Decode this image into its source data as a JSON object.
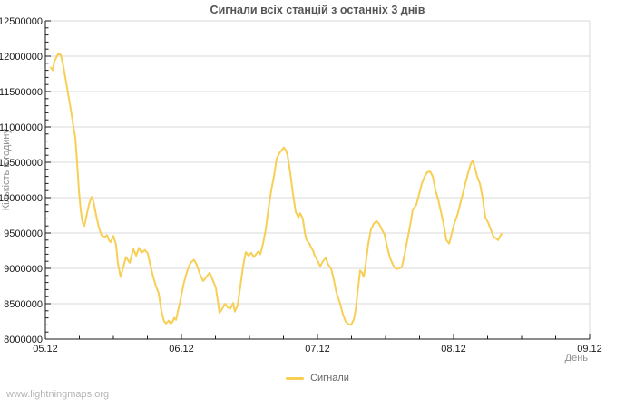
{
  "page": {
    "watermark": "www.lightningmaps.org"
  },
  "chart_data": {
    "type": "line",
    "title": "Сигнали всіх станцій з останніх 3 днів",
    "xlabel": "День",
    "ylabel": "Кількість в годину",
    "x_tick_labels": [
      "05.12",
      "06.12",
      "07.12",
      "08.12",
      "09.12"
    ],
    "y_ticks": [
      8000000,
      8500000,
      9000000,
      9500000,
      10000000,
      10500000,
      11000000,
      11500000,
      12000000,
      12500000
    ],
    "ylim": [
      8000000,
      12500000
    ],
    "xlim_days": [
      0,
      4
    ],
    "y_minor_step": 100000,
    "x_minor_step_days": 0.25,
    "grid": "horizontal-only",
    "legend_position": "bottom-center",
    "legend": [
      {
        "label": "Сигнали",
        "color": "#f7cf55"
      }
    ],
    "colors": {
      "line": "#f7cf55",
      "grid": "#d9d9d9",
      "axis": "#1a1a1a",
      "tick_label": "#1a1a1a",
      "title": "#555555",
      "muted": "#8f8f8f",
      "watermark": "#b5b5b5"
    },
    "series": [
      {
        "name": "Сигнали",
        "color": "#f7cf55",
        "points": [
          [
            0.04,
            11840000
          ],
          [
            0.053,
            11800000
          ],
          [
            0.067,
            11930000
          ],
          [
            0.093,
            12030000
          ],
          [
            0.113,
            12020000
          ],
          [
            0.133,
            11850000
          ],
          [
            0.16,
            11550000
          ],
          [
            0.187,
            11250000
          ],
          [
            0.207,
            11000000
          ],
          [
            0.22,
            10850000
          ],
          [
            0.233,
            10500000
          ],
          [
            0.247,
            10100000
          ],
          [
            0.26,
            9820000
          ],
          [
            0.273,
            9650000
          ],
          [
            0.287,
            9600000
          ],
          [
            0.3,
            9720000
          ],
          [
            0.32,
            9900000
          ],
          [
            0.34,
            10010000
          ],
          [
            0.353,
            9950000
          ],
          [
            0.373,
            9750000
          ],
          [
            0.393,
            9580000
          ],
          [
            0.413,
            9470000
          ],
          [
            0.433,
            9440000
          ],
          [
            0.453,
            9470000
          ],
          [
            0.467,
            9400000
          ],
          [
            0.48,
            9370000
          ],
          [
            0.5,
            9460000
          ],
          [
            0.52,
            9330000
          ],
          [
            0.533,
            9080000
          ],
          [
            0.553,
            8880000
          ],
          [
            0.567,
            8980000
          ],
          [
            0.593,
            9160000
          ],
          [
            0.62,
            9080000
          ],
          [
            0.647,
            9270000
          ],
          [
            0.667,
            9180000
          ],
          [
            0.687,
            9290000
          ],
          [
            0.707,
            9220000
          ],
          [
            0.733,
            9260000
          ],
          [
            0.753,
            9210000
          ],
          [
            0.767,
            9080000
          ],
          [
            0.793,
            8880000
          ],
          [
            0.813,
            8750000
          ],
          [
            0.833,
            8650000
          ],
          [
            0.853,
            8400000
          ],
          [
            0.873,
            8250000
          ],
          [
            0.887,
            8220000
          ],
          [
            0.907,
            8260000
          ],
          [
            0.92,
            8220000
          ],
          [
            0.933,
            8240000
          ],
          [
            0.947,
            8300000
          ],
          [
            0.96,
            8270000
          ],
          [
            0.973,
            8380000
          ],
          [
            0.993,
            8550000
          ],
          [
            1.013,
            8750000
          ],
          [
            1.033,
            8900000
          ],
          [
            1.053,
            9020000
          ],
          [
            1.073,
            9090000
          ],
          [
            1.093,
            9120000
          ],
          [
            1.113,
            9050000
          ],
          [
            1.14,
            8900000
          ],
          [
            1.16,
            8820000
          ],
          [
            1.187,
            8890000
          ],
          [
            1.207,
            8940000
          ],
          [
            1.227,
            8850000
          ],
          [
            1.253,
            8730000
          ],
          [
            1.267,
            8550000
          ],
          [
            1.28,
            8370000
          ],
          [
            1.3,
            8430000
          ],
          [
            1.32,
            8500000
          ],
          [
            1.34,
            8450000
          ],
          [
            1.36,
            8430000
          ],
          [
            1.38,
            8510000
          ],
          [
            1.393,
            8390000
          ],
          [
            1.413,
            8480000
          ],
          [
            1.433,
            8750000
          ],
          [
            1.447,
            8950000
          ],
          [
            1.46,
            9100000
          ],
          [
            1.473,
            9230000
          ],
          [
            1.493,
            9180000
          ],
          [
            1.513,
            9220000
          ],
          [
            1.533,
            9160000
          ],
          [
            1.553,
            9210000
          ],
          [
            1.567,
            9240000
          ],
          [
            1.58,
            9200000
          ],
          [
            1.6,
            9350000
          ],
          [
            1.62,
            9550000
          ],
          [
            1.64,
            9850000
          ],
          [
            1.66,
            10100000
          ],
          [
            1.68,
            10300000
          ],
          [
            1.7,
            10550000
          ],
          [
            1.72,
            10630000
          ],
          [
            1.74,
            10680000
          ],
          [
            1.753,
            10710000
          ],
          [
            1.767,
            10670000
          ],
          [
            1.78,
            10600000
          ],
          [
            1.8,
            10350000
          ],
          [
            1.82,
            10050000
          ],
          [
            1.84,
            9800000
          ],
          [
            1.86,
            9720000
          ],
          [
            1.873,
            9780000
          ],
          [
            1.893,
            9700000
          ],
          [
            1.907,
            9500000
          ],
          [
            1.92,
            9400000
          ],
          [
            1.94,
            9350000
          ],
          [
            1.953,
            9300000
          ],
          [
            1.967,
            9250000
          ],
          [
            1.98,
            9180000
          ],
          [
            2.0,
            9110000
          ],
          [
            2.02,
            9030000
          ],
          [
            2.04,
            9100000
          ],
          [
            2.06,
            9150000
          ],
          [
            2.08,
            9050000
          ],
          [
            2.1,
            9000000
          ],
          [
            2.12,
            8840000
          ],
          [
            2.14,
            8650000
          ],
          [
            2.167,
            8500000
          ],
          [
            2.187,
            8350000
          ],
          [
            2.207,
            8250000
          ],
          [
            2.227,
            8210000
          ],
          [
            2.247,
            8200000
          ],
          [
            2.267,
            8280000
          ],
          [
            2.28,
            8410000
          ],
          [
            2.3,
            8750000
          ],
          [
            2.313,
            8970000
          ],
          [
            2.327,
            8940000
          ],
          [
            2.34,
            8880000
          ],
          [
            2.353,
            9050000
          ],
          [
            2.373,
            9350000
          ],
          [
            2.393,
            9550000
          ],
          [
            2.413,
            9630000
          ],
          [
            2.433,
            9670000
          ],
          [
            2.453,
            9630000
          ],
          [
            2.473,
            9550000
          ],
          [
            2.493,
            9480000
          ],
          [
            2.513,
            9300000
          ],
          [
            2.533,
            9150000
          ],
          [
            2.56,
            9030000
          ],
          [
            2.58,
            8990000
          ],
          [
            2.6,
            9000000
          ],
          [
            2.62,
            9020000
          ],
          [
            2.64,
            9200000
          ],
          [
            2.66,
            9400000
          ],
          [
            2.68,
            9600000
          ],
          [
            2.7,
            9830000
          ],
          [
            2.713,
            9860000
          ],
          [
            2.727,
            9900000
          ],
          [
            2.747,
            10050000
          ],
          [
            2.767,
            10200000
          ],
          [
            2.787,
            10300000
          ],
          [
            2.807,
            10360000
          ],
          [
            2.827,
            10370000
          ],
          [
            2.847,
            10300000
          ],
          [
            2.867,
            10100000
          ],
          [
            2.887,
            9970000
          ],
          [
            2.907,
            9800000
          ],
          [
            2.927,
            9620000
          ],
          [
            2.947,
            9400000
          ],
          [
            2.967,
            9350000
          ],
          [
            2.987,
            9500000
          ],
          [
            3.007,
            9650000
          ],
          [
            3.027,
            9750000
          ],
          [
            3.047,
            9900000
          ],
          [
            3.067,
            10050000
          ],
          [
            3.087,
            10200000
          ],
          [
            3.107,
            10350000
          ],
          [
            3.127,
            10480000
          ],
          [
            3.14,
            10520000
          ],
          [
            3.153,
            10450000
          ],
          [
            3.173,
            10300000
          ],
          [
            3.193,
            10200000
          ],
          [
            3.213,
            10000000
          ],
          [
            3.233,
            9720000
          ],
          [
            3.253,
            9650000
          ],
          [
            3.273,
            9550000
          ],
          [
            3.293,
            9450000
          ],
          [
            3.313,
            9420000
          ],
          [
            3.327,
            9400000
          ],
          [
            3.34,
            9450000
          ],
          [
            3.353,
            9490000
          ]
        ]
      }
    ]
  }
}
